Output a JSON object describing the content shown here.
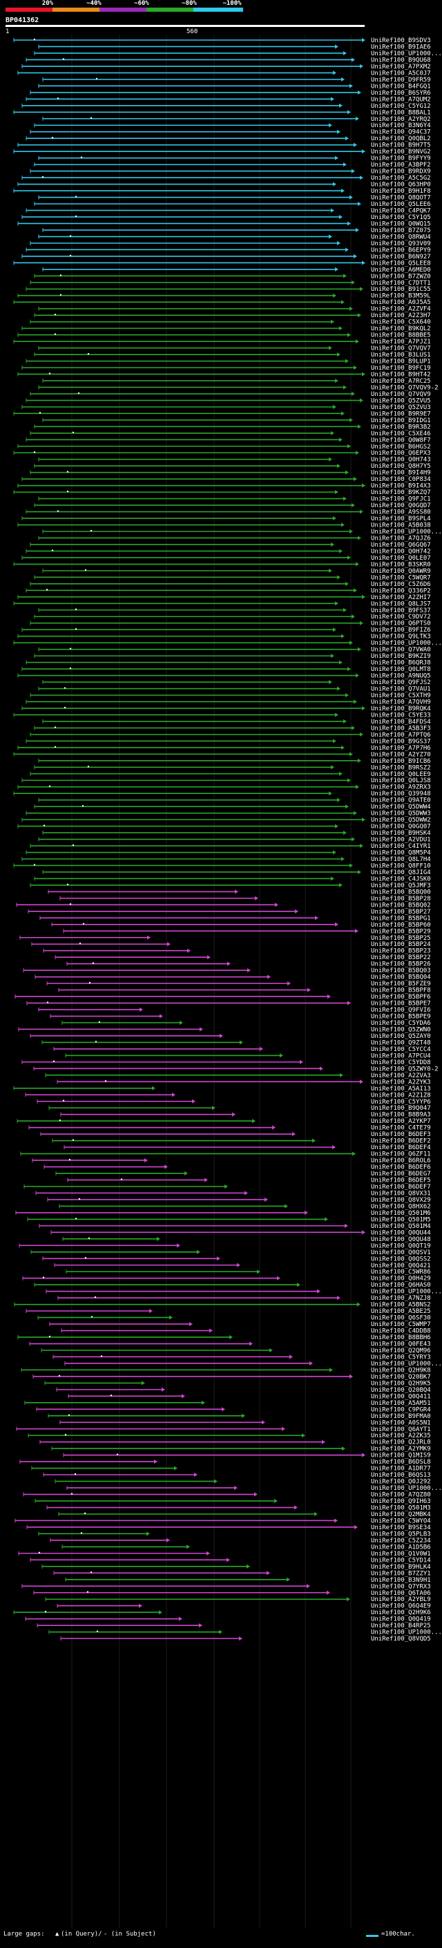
{
  "query": {
    "id": "BP041362",
    "start": "1",
    "end": "560"
  },
  "scale": {
    "labels": [
      "20%",
      "~40%",
      "~60%",
      "~80%",
      "~100%"
    ],
    "colors": [
      "#e8142a",
      "#e88a1a",
      "#9b2ab8",
      "#2aa82a",
      "#30c8e8"
    ]
  },
  "legend": {
    "text": "Large gaps: ",
    "in_query": "(in Query)/",
    "in_subject": "- (in Subject)",
    "scale_text": "=100char."
  },
  "hits": [
    "UniRef100_B9SDV3",
    "UniRef100_B9IAE6",
    "UniRef100_UP1000...",
    "UniRef100_B9QU68",
    "UniRef100_A7PXM2",
    "UniRef100_A5C0J7",
    "UniRef100_D9FR59",
    "UniRef100_B4FGQ1",
    "UniRef100_B6SYR6",
    "UniRef100_A7QUM2",
    "UniRef100_C5YG12",
    "UniRef100_B8BAL1",
    "UniRef100_A2YRQ2",
    "UniRef100_B3N6Y4",
    "UniRef100_Q94C37",
    "UniRef100_Q0QBL2",
    "UniRef100_B9H7T5",
    "UniRef100_B9NVG2",
    "UniRef100_B9FYY9",
    "UniRef100_A3BPF2",
    "UniRef100_B9RDX9",
    "UniRef100_A5C5G2",
    "UniRef100_Q63HP0",
    "UniRef100_B9H1F8",
    "UniRef100_Q8QOT7",
    "UniRef100_Q5LEE6",
    "UniRef100_C4PQK7",
    "UniRef100_C5Y1Q5",
    "UniRef100_Q0WQ15",
    "UniRef100_B7Z075",
    "UniRef100_Q8RWU4",
    "UniRef100_Q93V09",
    "UniRef100_B6EPY9",
    "UniRef100_B6N927",
    "UniRef100_Q5LEE8",
    "UniRef100_A6MED0",
    "UniRef100_B7ZWZ0",
    "UniRef100_C7DTT1",
    "UniRef100_B91C55",
    "UniRef100_B3M59L",
    "UniRef100_A0J5A5",
    "UniRef100_A2ZVF4",
    "UniRef100_A2Z3H7",
    "UniRef100_C5X640",
    "UniRef100_B9KQL2",
    "UniRef100_B8BBE5",
    "UniRef100_A7PJZ1",
    "UniRef100_Q7VQV7",
    "UniRef100_B3LUS1",
    "UniRef100_B9LUP1",
    "UniRef100_B9FC19",
    "UniRef100_B9HT42",
    "UniRef100_A7RC25",
    "UniRef100_Q7VQV9-2",
    "UniRef100_Q7VQV9",
    "UniRef100_Q5ZVU5",
    "UniRef100_Q5ZVU3",
    "UniRef100_B9R9E7",
    "UniRef100_B9IDG1",
    "UniRef100_B9R3B2",
    "UniRef100_C5XE46",
    "UniRef100_Q0W8F7",
    "UniRef100_B6HGS2",
    "UniRef100_Q6EPX3",
    "UniRef100_Q0H743",
    "UniRef100_Q8H7Y5",
    "UniRef100_B9I4H9",
    "UniRef100_C0P834",
    "UniRef100_B9I4X3",
    "UniRef100_B9KZQ7",
    "UniRef100_Q9FJC1",
    "UniRef100_Q0GQD7",
    "UniRef100_A9SS80",
    "UniRef100_B9SPL4",
    "UniRef100_A5B038",
    "UniRef100_UP1000...",
    "UniRef100_A7QJZ6",
    "UniRef100_Q6GQ67",
    "UniRef100_Q0H742",
    "UniRef100_Q0LE07",
    "UniRef100_B3SKR0",
    "UniRef100_Q0AWR9",
    "UniRef100_C5WQR7",
    "UniRef100_C5Z6D6",
    "UniRef100_Q336P2",
    "UniRef100_A2ZHI7",
    "UniRef100_Q8LJS7",
    "UniRef100_B9FS37",
    "UniRef100_C9DV72",
    "UniRef100_Q6PTS0",
    "UniRef100_B9FIZ6",
    "UniRef100_Q9LTK3",
    "UniRef100_UP1000...",
    "UniRef100_Q7VWA0",
    "UniRef100_B9KZI9",
    "UniRef100_B6QRJ8",
    "UniRef100_Q0LMT8",
    "UniRef100_A9NUQ5",
    "UniRef100_Q9FJS2",
    "UniRef100_Q7VAU1",
    "UniRef100_C5XTH9",
    "UniRef100_A7QVH9",
    "UniRef100_B9RQK4",
    "UniRef100_C5YE33",
    "UniRef100_B4FDS4",
    "UniRef100_A5B3F3",
    "UniRef100_A7PTQ6",
    "UniRef100_B9GS37",
    "UniRef100_A7P7H6",
    "UniRef100_A2YZ70",
    "UniRef100_B9ICB6",
    "UniRef100_B9RSZ2",
    "UniRef100_Q0LEE9",
    "UniRef100_Q0LJS8",
    "UniRef100_A9ZRX3",
    "UniRef100_Q39948",
    "UniRef100_Q9ATE0",
    "UniRef100_Q5DWW4",
    "UniRef100_Q5DWW3",
    "UniRef100_Q5DWW2",
    "UniRef100_Q0GQ07",
    "UniRef100_B9HSK4",
    "UniRef100_A2VDU1",
    "UniRef100_C4IYR1",
    "UniRef100_Q8M5P4",
    "UniRef100_Q8L7H4",
    "UniRef100_Q8FF10",
    "UniRef100_Q8JIG4",
    "UniRef100_C4JSK0",
    "UniRef100_Q5JMF3",
    "UniRef100_B5BQ00",
    "UniRef100_B5BP28",
    "UniRef100_B5BQ02",
    "UniRef100_B5BP27",
    "UniRef100_B5BPG1",
    "UniRef100_B5BP60",
    "UniRef100_B5BP29",
    "UniRef100_B5BP25",
    "UniRef100_B5BP24",
    "UniRef100_B5BP23",
    "UniRef100_B5BP22",
    "UniRef100_B5BP26",
    "UniRef100_B5BQ03",
    "UniRef100_B5BQ04",
    "UniRef100_B5FZE9",
    "UniRef100_B5BPF8",
    "UniRef100_B5BPF6",
    "UniRef100_B5BPE7",
    "UniRef100_Q9FVI6",
    "UniRef100_B5BPE9",
    "UniRef100_C5YDA6",
    "UniRef100_Q5ZWN0",
    "UniRef100_Q5ZAY0",
    "UniRef100_Q9ZT48",
    "UniRef100_C5YCC4",
    "UniRef100_A7PCU4",
    "UniRef100_C5YDD8",
    "UniRef100_Q5ZWY0-2",
    "UniRef100_A2ZVA3",
    "UniRef100_A2ZYK3",
    "UniRef100_A5AI13",
    "UniRef100_A2Z1Z8",
    "UniRef100_C5YYP6",
    "UniRef100_B9Q047",
    "UniRef100_B8B9A3",
    "UniRef100_A2YKP7",
    "UniRef100_C4TE79",
    "UniRef100_B6DEF3",
    "UniRef100_B6DEF2",
    "UniRef100_B6DEF4",
    "UniRef100_Q6ZF11",
    "UniRef100_B6ROL6",
    "UniRef100_B6DEF6",
    "UniRef100_B6DEG7",
    "UniRef100_B6DEF5",
    "UniRef100_B6DEF7",
    "UniRef100_Q8VX31",
    "UniRef100_Q8VX29",
    "UniRef100_Q8HX62",
    "UniRef100_Q501M6",
    "UniRef100_Q501M5",
    "UniRef100_Q501M4",
    "UniRef100_Q0QU44",
    "UniRef100_Q0QU48",
    "UniRef100_Q0QT19",
    "UniRef100_Q0QSV1",
    "UniRef100_Q0QSS2",
    "UniRef100_Q0Q421",
    "UniRef100_C5WR86",
    "UniRef100_Q0H429",
    "UniRef100_Q6HAS0",
    "UniRef100_UP1000...",
    "UniRef100_A7NZJ8",
    "UniRef100_A5BNS2",
    "UniRef100_A5BE25",
    "UniRef100_Q6SF30",
    "UniRef100_C5WMP7",
    "UniRef100_C4DDB8",
    "UniRef100_B8BBH6",
    "UniRef100_Q0FE43",
    "UniRef100_Q2QM96",
    "UniRef100_C5YRY3",
    "UniRef100_UP1000...",
    "UniRef100_Q2H9K8",
    "UniRef100_Q20BK7",
    "UniRef100_Q2H9K5",
    "UniRef100_Q20BQ4",
    "UniRef100_Q0Q411",
    "UniRef100_A5AM51",
    "UniRef100_C9PGR4",
    "UniRef100_B9FMA0",
    "UniRef100_A0S5N1",
    "UniRef100_Q6AYT1",
    "UniRef100_A2ZK35",
    "UniRef100_Q2JRL0",
    "UniRef100_A2YMK9",
    "UniRef100_Q1MIS9",
    "UniRef100_B6DSL8",
    "UniRef100_A1DR77",
    "UniRef100_B6QS13",
    "UniRef100_Q0J292",
    "UniRef100_UP1000...",
    "UniRef100_A7QZ80",
    "UniRef100_Q9IH63",
    "UniRef100_Q501M3",
    "UniRef100_Q2MBK4",
    "UniRef100_C5WYO4",
    "UniRef100_B9SE34",
    "UniRef100_Q5PLB3",
    "UniRef100_C5Z234",
    "UniRef100_A1D5B6",
    "UniRef100_Q1V0W1",
    "UniRef100_C5YD14",
    "UniRef100_B9HLK4",
    "UniRef100_B7ZZY1",
    "UniRef100_B3N9H1",
    "UniRef100_Q7YRX3",
    "UniRef100_Q6TA06",
    "UniRef100_A2YBL9",
    "UniRef100_Q6Q4E9",
    "UniRef100_Q2H9K6",
    "UniRef100_Q0Q419",
    "UniRef100_B4RP25",
    "UniRef100_UP1000...",
    "UniRef100_Q8VQD5"
  ]
}
